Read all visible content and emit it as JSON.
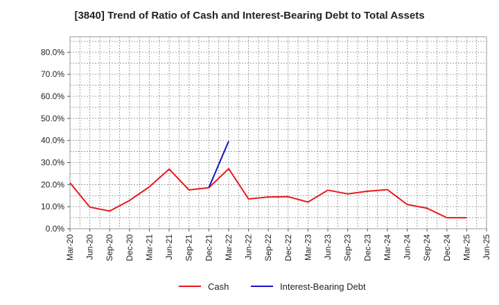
{
  "chart_data": {
    "type": "line",
    "title": "[3840]  Trend of Ratio of Cash and Interest-Bearing Debt to Total Assets",
    "xlabel": "",
    "ylabel": "",
    "ylim": [
      0,
      0.87
    ],
    "yticks": [
      0,
      0.1,
      0.2,
      0.3,
      0.4,
      0.5,
      0.6,
      0.7,
      0.8
    ],
    "ytick_labels": [
      "0.0%",
      "10.0%",
      "20.0%",
      "30.0%",
      "40.0%",
      "50.0%",
      "60.0%",
      "70.0%",
      "80.0%"
    ],
    "categories": [
      "Mar-20",
      "Jun-20",
      "Sep-20",
      "Dec-20",
      "Mar-21",
      "Jun-21",
      "Sep-21",
      "Dec-21",
      "Mar-22",
      "Jun-22",
      "Sep-22",
      "Dec-22",
      "Mar-23",
      "Jun-23",
      "Sep-23",
      "Dec-23",
      "Mar-24",
      "Jun-24",
      "Sep-24",
      "Dec-24",
      "Mar-25",
      "Jun-25"
    ],
    "grid": true,
    "legend_position": "bottom",
    "series": [
      {
        "name": "Cash",
        "color": "#e8171c",
        "values": [
          0.208,
          0.098,
          0.08,
          0.128,
          0.19,
          0.27,
          0.176,
          0.186,
          0.272,
          0.135,
          0.144,
          0.145,
          0.121,
          0.175,
          0.158,
          0.17,
          0.177,
          0.11,
          0.093,
          0.05,
          0.05,
          null
        ]
      },
      {
        "name": "Interest-Bearing Debt",
        "color": "#1010c8",
        "values": [
          null,
          null,
          null,
          null,
          null,
          null,
          null,
          0.186,
          0.397,
          null,
          null,
          null,
          null,
          null,
          null,
          null,
          null,
          null,
          null,
          null,
          null,
          null
        ]
      }
    ]
  }
}
